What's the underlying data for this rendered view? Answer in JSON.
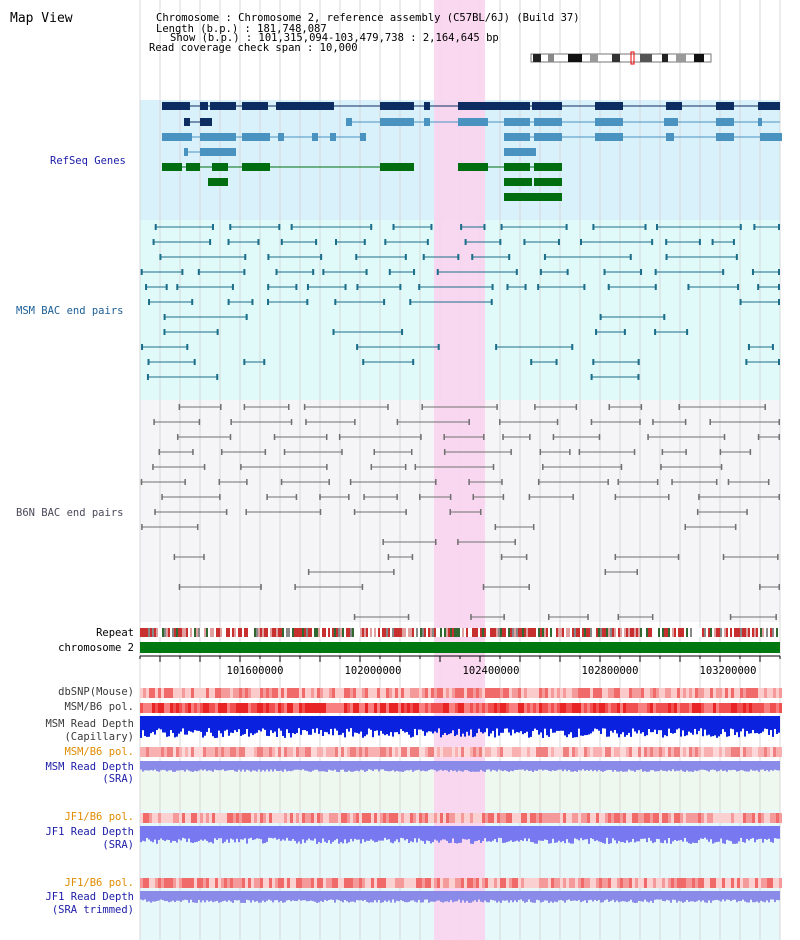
{
  "window": {
    "title": "Map View"
  },
  "header": {
    "chromosome_line": "Chromosome     : Chromosome 2, reference assembly (C57BL/6J) (Build 37)",
    "length_line": "Length (b.p.) : 181,748,087",
    "show_line": "Show (b.p.) : 101,315,094-103,479,738 : 2,164,645 bp",
    "span_line": "Read coverage check span : 10,000"
  },
  "tracks": {
    "refseq": "RefSeq Genes",
    "msm_bac": "MSM BAC end pairs",
    "b6n_bac": "B6N BAC end pairs",
    "repeat": "Repeat",
    "chromosome": "chromosome 2",
    "dbsnp": "dbSNP(Mouse)",
    "msm_b6_pol": "MSM/B6 pol.",
    "msm_depth_cap_1": "MSM Read Depth",
    "msm_depth_cap_2": "(Capillary)",
    "msm_b6_pol_sra": "MSM/B6 pol.",
    "msm_depth_sra_1": "MSM Read Depth",
    "msm_depth_sra_2": "(SRA)",
    "jf1_b6_pol": "JF1/B6 pol.",
    "jf1_depth_1": "JF1 Read Depth",
    "jf1_depth_2": "(SRA)",
    "jf1_b6_pol_trim": "JF1/B6 pol.",
    "jf1_depth_trim_1": "JF1 Read Depth",
    "jf1_depth_trim_2": "(SRA trimmed)"
  },
  "axis": {
    "ticks": [
      "101600000",
      "102000000",
      "102400000",
      "102800000",
      "103200000"
    ]
  },
  "colors": {
    "refseq_bg": "#d9f1fb",
    "msm_bg": "#e0fafa",
    "b6n_bg": "#f5f5f8",
    "selection": "#f9d4ee",
    "gene_dark": "#0d2d62",
    "gene_mid": "#4a93c0",
    "gene_green": "#006e10",
    "msm_line": "#1c6e8a",
    "b6n_line": "#707070",
    "chrom_green": "#007a10",
    "label_blue": "#1c1ca8",
    "label_teal": "#1c5e96",
    "label_gray": "#4a4a5a",
    "label_orange": "#e08c00"
  }
}
